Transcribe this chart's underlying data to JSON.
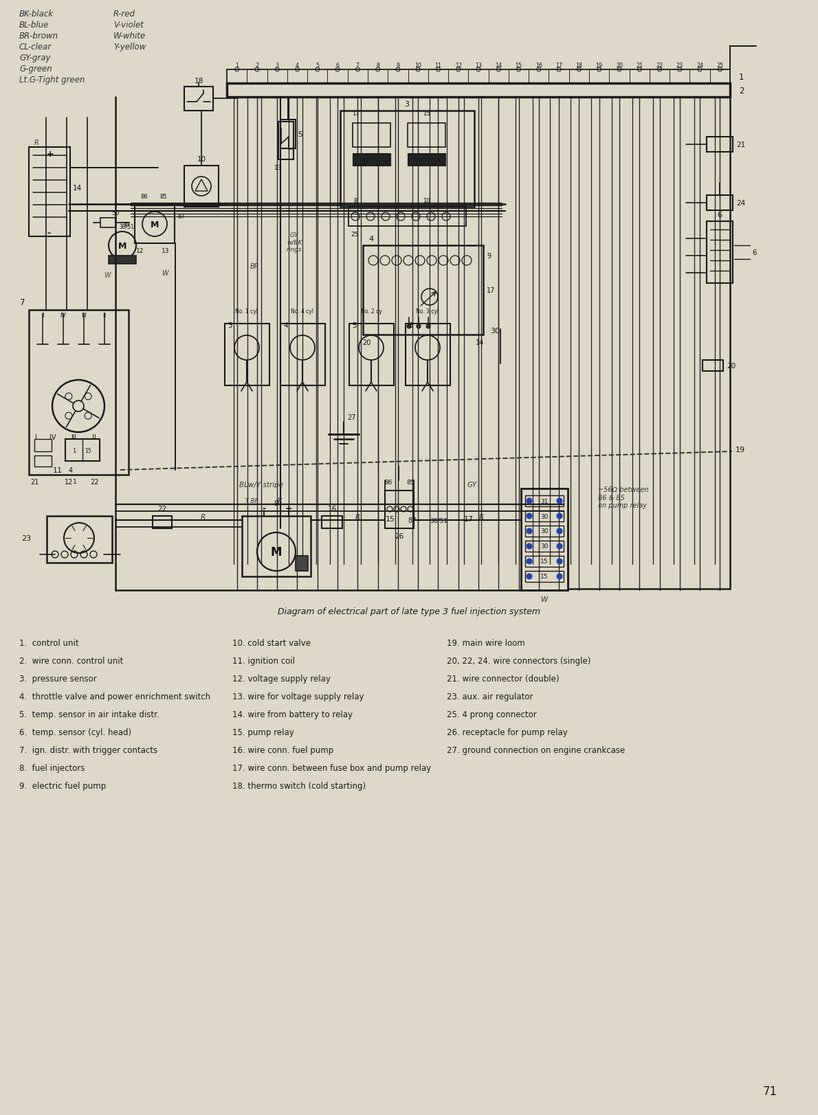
{
  "bg_color": "#ddd8c8",
  "line_color": "#1a1a1a",
  "title": "Diagram of electrical part of late type 3 fuel injection system",
  "page_num": "71",
  "legend_col1": [
    "1.  control unit",
    "2.  wire conn. control unit",
    "3.  pressure sensor",
    "4.  throttle valve and power enrichment switch",
    "5.  temp. sensor in air intake distr.",
    "6.  temp. sensor (cyl. head)",
    "7.  ign. distr. with trigger contacts",
    "8.  fuel injectors",
    "9.  electric fuel pump"
  ],
  "legend_col2": [
    "10. cold start valve",
    "11. ignition coil",
    "12. voltage supply relay",
    "13. wire for voltage supply relay",
    "14. wire from battery to relay",
    "15. pump relay",
    "16. wire conn. fuel pump",
    "17. wire conn. between fuse box and pump relay",
    "18. thermo switch (cold starting)"
  ],
  "legend_col3": [
    "19. main wire loom",
    "20, 22, 24. wire connectors (single)",
    "21. wire connector (double)",
    "23. aux. air regulator",
    "25. 4 prong connector",
    "26. receptacle for pump relay",
    "27. ground connection on engine crankcase"
  ],
  "color_legend_left": [
    "BK-black",
    "BL-blue",
    "BR-brown",
    "CL-clear",
    "GY-gray",
    "G-green",
    "Lt.G-Tight green"
  ],
  "color_legend_right": [
    "R-red",
    "V-violet",
    "W-white",
    "Y-yellow"
  ]
}
